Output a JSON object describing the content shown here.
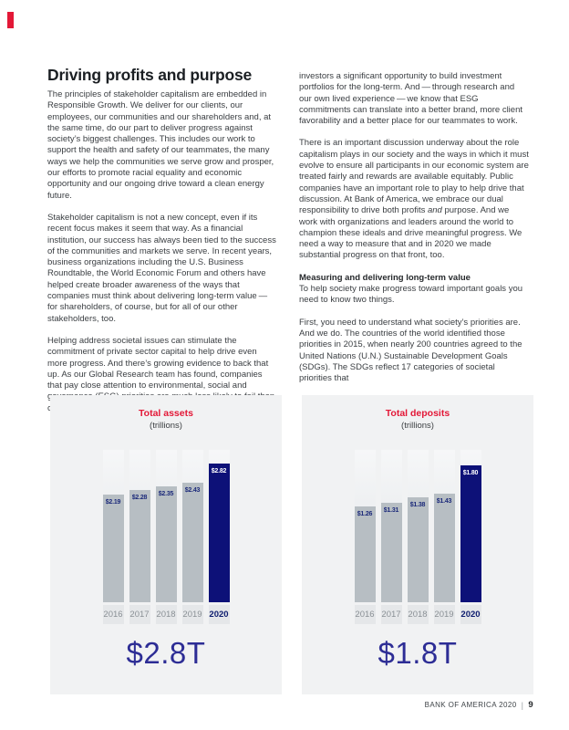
{
  "article": {
    "heading": "Driving profits and purpose",
    "left_paragraphs": [
      "The principles of stakeholder capitalism are embedded in Responsible Growth. We deliver for our clients, our employees, our communities and our shareholders and, at the same time, do our part to deliver progress against society’s biggest challenges. This includes our work to support the health and safety of our teammates, the many ways we help the communities we serve grow and prosper, our efforts to promote racial equality and economic opportunity and our ongoing drive toward a clean energy future.",
      "Stakeholder capitalism is not a new concept, even if its recent focus makes it seem that way. As a financial institution, our success has always been tied to the success of the communities and markets we serve. In recent years, business organizations including the U.S. Business Roundtable, the World Economic Forum and others have helped create broader awareness of the ways that companies must think about delivering long-term value — for shareholders, of course, but for all of our other stakeholders, too.",
      "Helping address societal issues can stimulate the commitment of private sector capital to help drive even more progress. And there’s growing evidence to back that up. As our Global Research team has found, companies that pay close attention to environmental, social and governance (ESG) priorities are much less likely to fail than companies that do not, giving"
    ],
    "right_blocks": [
      {
        "kind": "paragraph",
        "content": "investors a significant opportunity to build investment portfolios for the long-term. And — through research and our own lived experience — we know that ESG commitments can translate into a better brand, more client favorability and a better place for our teammates to work."
      },
      {
        "kind": "paragraph",
        "parts": [
          {
            "t": "There is an important discussion underway about the role capitalism plays in our society and the ways in which it must evolve to ensure all participants in our economic system are treated fairly and rewards are available equitably. Public companies have an important role to play to help drive that discussion. At Bank of America, we embrace our dual responsibility to drive both profits "
          },
          {
            "t": "and",
            "i": true
          },
          {
            "t": " purpose. And we work with organizations and leaders around the world to champion these ideals and drive meaningful progress. We need a way to measure that and in 2020 we made substantial progress on that front, too."
          }
        ]
      },
      {
        "kind": "subhead",
        "content": "Measuring and delivering long-term value"
      },
      {
        "kind": "paragraph",
        "content": "To help society make progress toward important goals you need to know two things."
      },
      {
        "kind": "paragraph",
        "content": "First, you need to understand what society’s priorities are. And we do. The countries of the world identified those priorities in 2015, when nearly 200 countries agreed to the United Nations (U.N.) Sustainable Development Goals (SDGs). The SDGs reflect 17 categories of societal priorities that"
      }
    ]
  },
  "chart_data": [
    {
      "type": "bar",
      "title": "Total assets",
      "subtitle": "(trillions)",
      "categories": [
        "2016",
        "2017",
        "2018",
        "2019",
        "2020"
      ],
      "values": [
        2.19,
        2.28,
        2.35,
        2.43,
        2.82
      ],
      "bar_labels": [
        "$2.19",
        "$2.28",
        "$2.35",
        "$2.43",
        "$2.82"
      ],
      "highlight_index": 4,
      "summary_value": "$2.8T",
      "ylim": [
        0,
        3.1
      ],
      "title_color": "#e31837",
      "bar_color": "#b7bec3",
      "highlight_color": "#0d1178",
      "label_color": "#1c2a7a",
      "highlight_label_color": "#ffffff"
    },
    {
      "type": "bar",
      "title": "Total deposits",
      "subtitle": "(trillions)",
      "categories": [
        "2016",
        "2017",
        "2018",
        "2019",
        "2020"
      ],
      "values": [
        1.26,
        1.31,
        1.38,
        1.43,
        1.8
      ],
      "bar_labels": [
        "$1.26",
        "$1.31",
        "$1.38",
        "$1.43",
        "$1.80"
      ],
      "highlight_index": 4,
      "summary_value": "$1.8T",
      "ylim": [
        0,
        2.0
      ],
      "title_color": "#e31837",
      "bar_color": "#b7bec3",
      "highlight_color": "#0d1178",
      "label_color": "#1c2a7a",
      "highlight_label_color": "#ffffff"
    }
  ],
  "footer": {
    "brand": "BANK OF AMERICA 2020",
    "separator": "|",
    "page_number": "9"
  }
}
